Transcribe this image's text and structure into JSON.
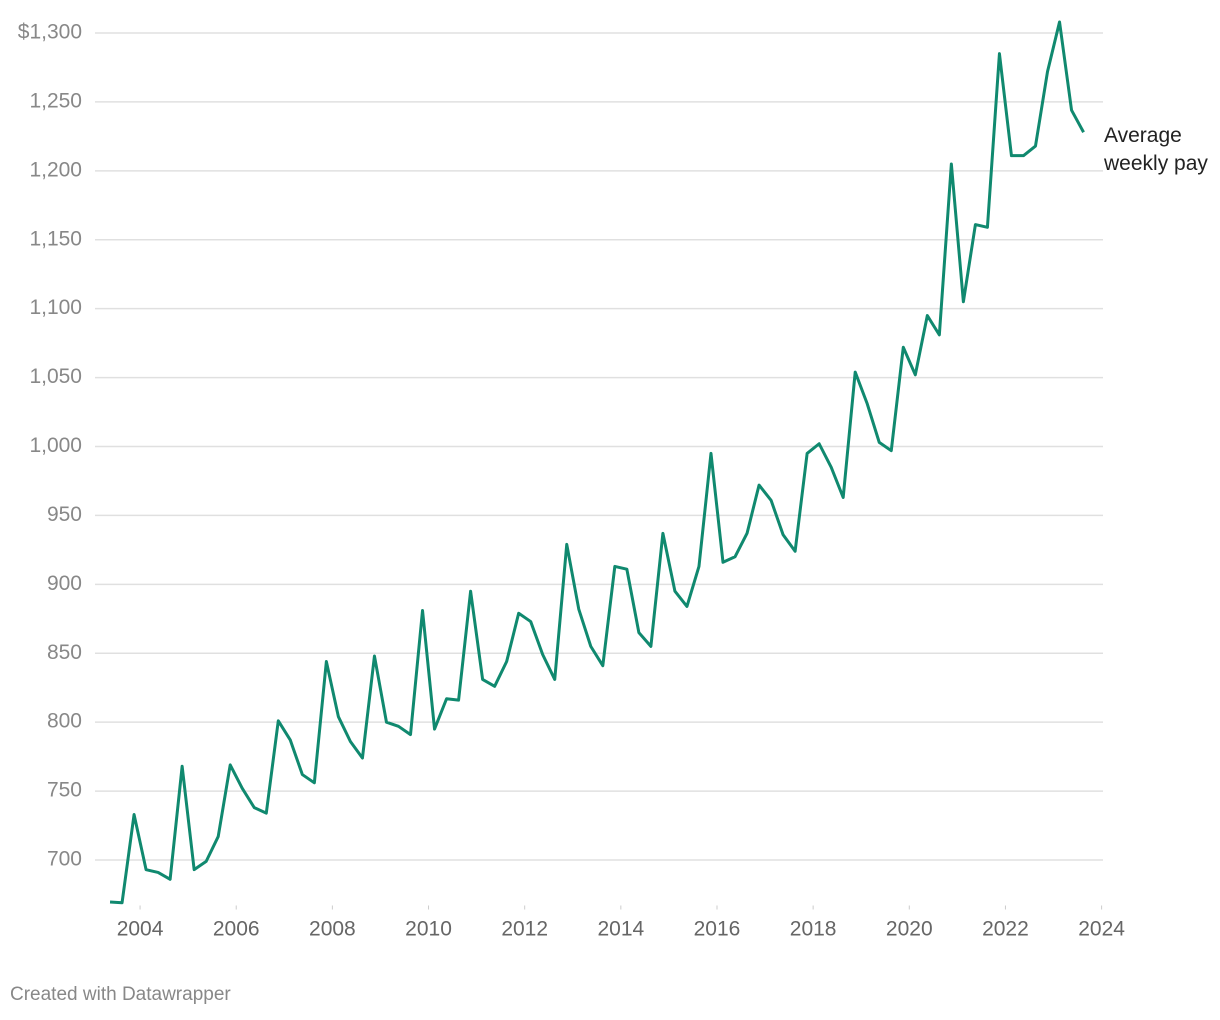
{
  "chart_data": {
    "type": "line",
    "x": [
      2003.375,
      2003.625,
      2003.875,
      2004.125,
      2004.375,
      2004.625,
      2004.875,
      2005.125,
      2005.375,
      2005.625,
      2005.875,
      2006.125,
      2006.375,
      2006.625,
      2006.875,
      2007.125,
      2007.375,
      2007.625,
      2007.875,
      2008.125,
      2008.375,
      2008.625,
      2008.875,
      2009.125,
      2009.375,
      2009.625,
      2009.875,
      2010.125,
      2010.375,
      2010.625,
      2010.875,
      2011.125,
      2011.375,
      2011.625,
      2011.875,
      2012.125,
      2012.375,
      2012.625,
      2012.875,
      2013.125,
      2013.375,
      2013.625,
      2013.875,
      2014.125,
      2014.375,
      2014.625,
      2014.875,
      2015.125,
      2015.375,
      2015.625,
      2015.875,
      2016.125,
      2016.375,
      2016.625,
      2016.875,
      2017.125,
      2017.375,
      2017.625,
      2017.875,
      2018.125,
      2018.375,
      2018.625,
      2018.875,
      2019.125,
      2019.375,
      2019.625,
      2019.875,
      2020.125,
      2020.375,
      2020.625,
      2020.875,
      2021.125,
      2021.375,
      2021.625,
      2021.875,
      2022.125,
      2022.375,
      2022.625,
      2022.875,
      2023.125,
      2023.375,
      2023.625
    ],
    "series": [
      {
        "name": "Average weekly pay",
        "color": "#10896f",
        "values": [
          669.5,
          669,
          733,
          693,
          691,
          686,
          768,
          693,
          699,
          717,
          769,
          752,
          738,
          734,
          801,
          787,
          762,
          756,
          844,
          804,
          786,
          774,
          848,
          800,
          797,
          791,
          881,
          795,
          817,
          816,
          895,
          831,
          826,
          844,
          879,
          873,
          849,
          831,
          929,
          882,
          855,
          841,
          913,
          911,
          865,
          855,
          937,
          895,
          884,
          913,
          995,
          916,
          920,
          937,
          972,
          961,
          936,
          924,
          995,
          1002,
          985,
          963,
          1054,
          1031,
          1003,
          997,
          1072,
          1052,
          1095,
          1081,
          1205,
          1105,
          1161,
          1159,
          1285,
          1211,
          1211,
          1218,
          1272,
          1308,
          1244,
          1228
        ]
      }
    ],
    "xlim": [
      2003,
      2024.05
    ],
    "xticks": [
      2004,
      2006,
      2008,
      2010,
      2012,
      2014,
      2016,
      2018,
      2020,
      2022,
      2024
    ],
    "ylim": [
      667,
      1300
    ],
    "yticks": [
      700,
      750,
      800,
      850,
      900,
      950,
      {
        "value": 1000,
        "label": "1,000"
      },
      {
        "value": 1050,
        "label": "1,050"
      },
      {
        "value": 1100,
        "label": "1,100"
      },
      {
        "value": 1150,
        "label": "1,150"
      },
      {
        "value": 1200,
        "label": "1,200"
      },
      {
        "value": 1250,
        "label": "1,250"
      },
      {
        "value": 1300,
        "label": "$1,300"
      }
    ],
    "grid": true,
    "footer": "Created with Datawrapper"
  }
}
